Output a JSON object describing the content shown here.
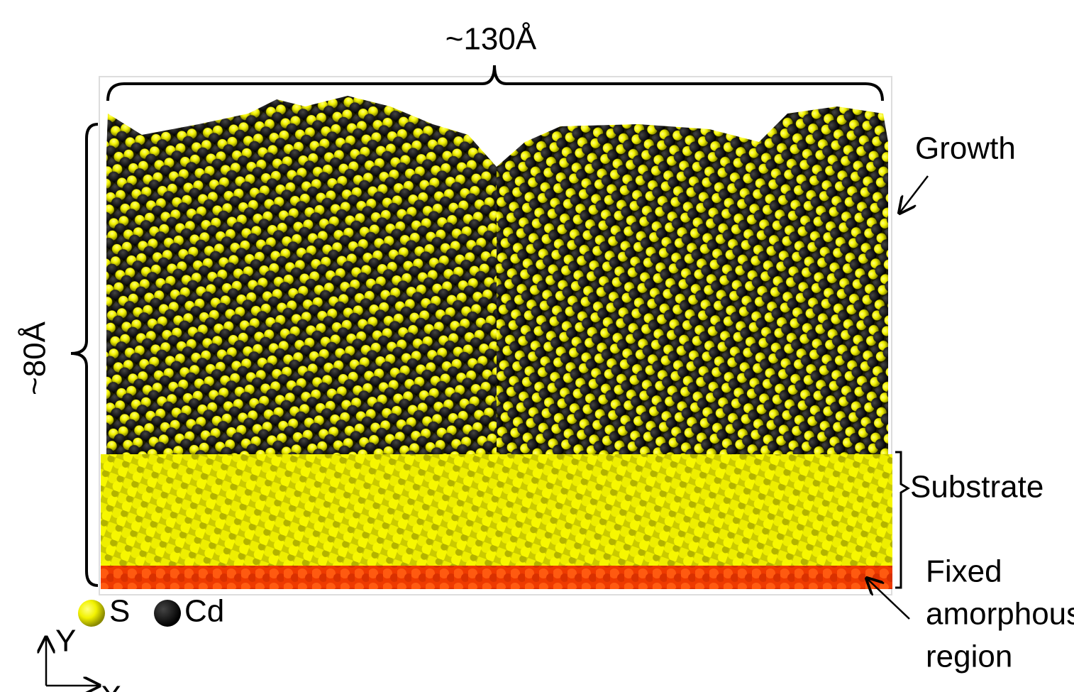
{
  "labels": {
    "width": "~130Å",
    "height": "~80Å",
    "growth": "Growth",
    "substrate": "Substrate",
    "fixed_region": [
      "Fixed",
      "amorphous",
      "region"
    ]
  },
  "legend": [
    {
      "symbol": "S"
    },
    {
      "symbol": "Cd"
    }
  ],
  "axes": {
    "y": "Y",
    "x": "X"
  }
}
